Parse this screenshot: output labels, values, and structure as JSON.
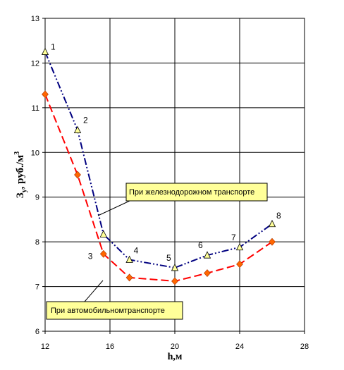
{
  "chart_data": {
    "type": "line",
    "xlabel": "h,м",
    "ylabel_main": "З",
    "ylabel_sub": "у",
    "ylabel_rest": ", руб./м",
    "ylabel_sup": "3",
    "xlim": [
      12,
      28
    ],
    "ylim": [
      6,
      13
    ],
    "x_ticks": [
      12,
      16,
      20,
      24,
      28
    ],
    "y_ticks": [
      6,
      7,
      8,
      9,
      10,
      11,
      12,
      13
    ],
    "grid": true,
    "series": [
      {
        "name": "При железнодорожном транспорте",
        "color": "#000080",
        "marker": "triangle",
        "marker_color": "#ffff99",
        "x": [
          12,
          14,
          15.6,
          17.2,
          20,
          22,
          24,
          26
        ],
        "y": [
          12.25,
          10.5,
          8.17,
          7.6,
          7.42,
          7.7,
          7.88,
          8.4
        ]
      },
      {
        "name": "При автомобильномтранспорте",
        "color": "#ff0000",
        "marker": "diamond",
        "marker_color": "#ff6600",
        "x": [
          12,
          14,
          15.6,
          17.2,
          20,
          22,
          24,
          26
        ],
        "y": [
          11.3,
          9.5,
          7.73,
          7.2,
          7.12,
          7.3,
          7.5,
          8.0
        ]
      }
    ],
    "point_labels": [
      {
        "text": "1",
        "x": 12,
        "y": 12.25
      },
      {
        "text": "2",
        "x": 14,
        "y": 10.5
      },
      {
        "text": "3",
        "x": 15.6,
        "y": 7.73
      },
      {
        "text": "4",
        "x": 17.2,
        "y": 7.6
      },
      {
        "text": "5",
        "x": 20,
        "y": 7.42
      },
      {
        "text": "6",
        "x": 22,
        "y": 7.7
      },
      {
        "text": "7",
        "x": 24,
        "y": 7.88
      },
      {
        "text": "8",
        "x": 26,
        "y": 8.4
      }
    ]
  }
}
